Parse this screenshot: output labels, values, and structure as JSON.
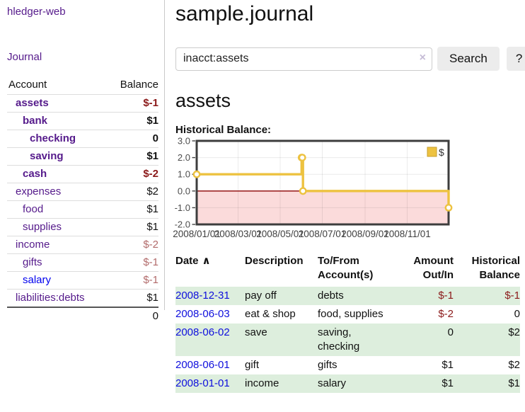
{
  "colors": {
    "link_purple": "#551a8b",
    "link_blue": "#0000ee",
    "negative_strong": "#8b1a1a",
    "negative_soft": "#b26b6b",
    "row_highlight_green": "#ddeedd",
    "chart_line_gold": "#EDC240",
    "chart_negative_fill": "#fbdbdb",
    "chart_zero_line": "#8b0000",
    "button_gray": "#ececec"
  },
  "sidebar": {
    "app_title": "hledger-web",
    "journal_link": "Journal",
    "accounts": {
      "header_account": "Account",
      "header_balance": "Balance",
      "rows": [
        {
          "name": "assets",
          "balance": "$-1",
          "indent": 1,
          "emphasis": true,
          "balance_style": "neg"
        },
        {
          "name": "bank",
          "balance": "$1",
          "indent": 2,
          "emphasis": true,
          "balance_style": ""
        },
        {
          "name": "checking",
          "balance": "0",
          "indent": 3,
          "emphasis": true,
          "balance_style": ""
        },
        {
          "name": "saving",
          "balance": "$1",
          "indent": 3,
          "emphasis": true,
          "balance_style": ""
        },
        {
          "name": "cash",
          "balance": "$-2",
          "indent": 2,
          "emphasis": true,
          "balance_style": "neg"
        },
        {
          "name": "expenses",
          "balance": "$2",
          "indent": 1,
          "emphasis": false,
          "balance_style": ""
        },
        {
          "name": "food",
          "balance": "$1",
          "indent": 2,
          "emphasis": false,
          "balance_style": ""
        },
        {
          "name": "supplies",
          "balance": "$1",
          "indent": 2,
          "emphasis": false,
          "balance_style": ""
        },
        {
          "name": "income",
          "balance": "$-2",
          "indent": 1,
          "emphasis": false,
          "balance_style": "neg-soft"
        },
        {
          "name": "gifts",
          "balance": "$-1",
          "indent": 2,
          "emphasis": false,
          "balance_style": "neg-soft"
        },
        {
          "name": "salary",
          "balance": "$-1",
          "indent": 2,
          "emphasis": false,
          "balance_style": "neg-soft",
          "link_color": "blue"
        },
        {
          "name": "liabilities:debts",
          "balance": "$1",
          "indent": 1,
          "emphasis": false,
          "balance_style": ""
        }
      ],
      "total": "0"
    }
  },
  "main": {
    "title": "sample.journal",
    "search": {
      "value": "inacct:assets",
      "clear_icon": "×",
      "search_button": "Search",
      "help_button": "?"
    },
    "account_heading": "assets",
    "register": {
      "headers": {
        "date": "Date",
        "sort_icon": "∧",
        "description": "Description",
        "accounts": "To/From\nAccount(s)",
        "amount": "Amount\nOut/In",
        "balance": "Historical\nBalance"
      },
      "rows": [
        {
          "date": "2008-12-31",
          "description": "pay off",
          "accounts": "debts",
          "amount": "$-1",
          "amount_negative": true,
          "balance": "$-1",
          "balance_negative": true
        },
        {
          "date": "2008-06-03",
          "description": "eat & shop",
          "accounts": "food, supplies",
          "amount": "$-2",
          "amount_negative": true,
          "balance": "0",
          "balance_negative": false
        },
        {
          "date": "2008-06-02",
          "description": "save",
          "accounts": "saving, checking",
          "amount": "0",
          "amount_negative": false,
          "balance": "$2",
          "balance_negative": false
        },
        {
          "date": "2008-06-01",
          "description": "gift",
          "accounts": "gifts",
          "amount": "$1",
          "amount_negative": false,
          "balance": "$2",
          "balance_negative": false
        },
        {
          "date": "2008-01-01",
          "description": "income",
          "accounts": "salary",
          "amount": "$1",
          "amount_negative": false,
          "balance": "$1",
          "balance_negative": false
        }
      ]
    }
  },
  "chart_data": {
    "type": "line",
    "title": "Historical Balance:",
    "step": true,
    "x_range": [
      "2008/01/01",
      "2008/12/31"
    ],
    "ylim": [
      -2.0,
      3.0
    ],
    "y_ticks": [
      3.0,
      2.0,
      1.0,
      0.0,
      -1.0,
      -2.0
    ],
    "x_ticks": [
      "2008/01/01",
      "2008/03/01",
      "2008/05/01",
      "2008/07/01",
      "2008/09/01",
      "2008/11/01"
    ],
    "grid": true,
    "legend": {
      "label": "$",
      "position": "top-right"
    },
    "series": [
      {
        "name": "$",
        "color": "#EDC240",
        "points": [
          {
            "date": "2008-01-01",
            "value": 1
          },
          {
            "date": "2008-06-01",
            "value": 2
          },
          {
            "date": "2008-06-02",
            "value": 2
          },
          {
            "date": "2008-06-03",
            "value": 0
          },
          {
            "date": "2008-12-31",
            "value": -1
          }
        ]
      }
    ]
  }
}
